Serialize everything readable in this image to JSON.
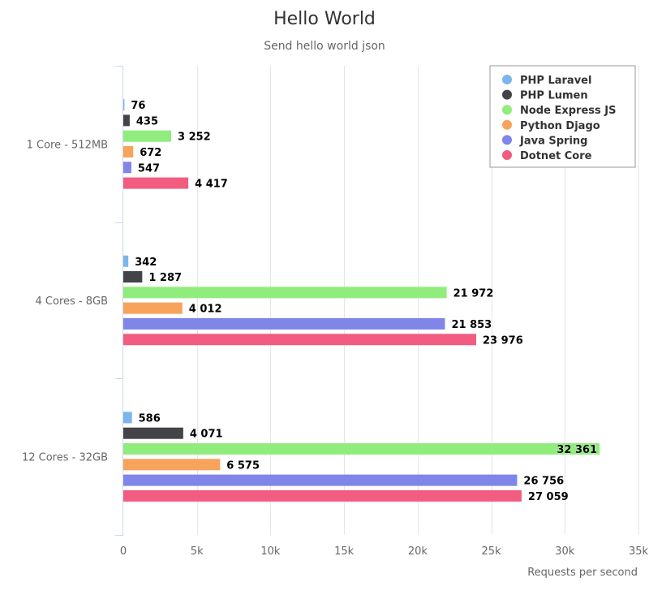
{
  "chart_data": {
    "type": "bar",
    "orientation": "horizontal",
    "title": "Hello World",
    "subtitle": "Send hello world json",
    "xlabel": "Requests per second",
    "ylabel": "",
    "categories": [
      "1 Core - 512MB",
      "4 Cores - 8GB",
      "12 Cores - 32GB"
    ],
    "xlim": [
      0,
      35000
    ],
    "ticks": [
      0,
      5000,
      10000,
      15000,
      20000,
      25000,
      30000,
      35000
    ],
    "tick_labels": [
      "0",
      "5k",
      "10k",
      "15k",
      "20k",
      "25k",
      "30k",
      "35k"
    ],
    "grid": true,
    "legend_position": "top-right",
    "series": [
      {
        "name": "PHP Laravel",
        "color": "#7cb5ec",
        "values": [
          76,
          342,
          586
        ],
        "labels": [
          "76",
          "342",
          "586"
        ]
      },
      {
        "name": "PHP Lumen",
        "color": "#434348",
        "values": [
          435,
          1287,
          4071
        ],
        "labels": [
          "435",
          "1 287",
          "4 071"
        ]
      },
      {
        "name": "Node Express JS",
        "color": "#90ed7d",
        "values": [
          3252,
          21972,
          32361
        ],
        "labels": [
          "3 252",
          "21 972",
          "32 361"
        ]
      },
      {
        "name": "Python Djago",
        "color": "#f7a35c",
        "values": [
          672,
          4012,
          6575
        ],
        "labels": [
          "672",
          "4 012",
          "6 575"
        ]
      },
      {
        "name": "Java Spring",
        "color": "#8085e9",
        "values": [
          547,
          21853,
          26756
        ],
        "labels": [
          "547",
          "21 853",
          "26 756"
        ]
      },
      {
        "name": "Dotnet Core",
        "color": "#f15c80",
        "values": [
          4417,
          23976,
          27059
        ],
        "labels": [
          "4 417",
          "23 976",
          "27 059"
        ]
      }
    ]
  }
}
